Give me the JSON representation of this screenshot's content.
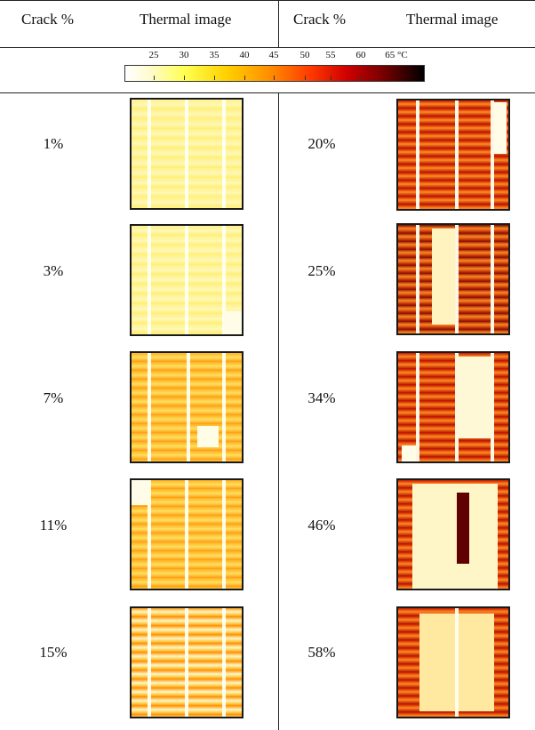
{
  "table": {
    "headers": {
      "crack_left": "Crack %",
      "thermal_left": "Thermal image",
      "crack_right": "Crack %",
      "thermal_right": "Thermal image"
    },
    "color_scale": {
      "ticks": [
        "25",
        "30",
        "35",
        "40",
        "45",
        "50",
        "55",
        "60",
        "65 °C"
      ],
      "gradient_colors": [
        "#ffffff",
        "#ffff50",
        "#ffd000",
        "#ff9000",
        "#ff3a00",
        "#d00000",
        "#7a0000",
        "#000000"
      ]
    },
    "rows": [
      {
        "left_pct": "1%",
        "right_pct": "20%"
      },
      {
        "left_pct": "3%",
        "right_pct": "25%"
      },
      {
        "left_pct": "7%",
        "right_pct": "34%"
      },
      {
        "left_pct": "11%",
        "right_pct": "46%"
      },
      {
        "left_pct": "15%",
        "right_pct": "58%"
      }
    ]
  }
}
